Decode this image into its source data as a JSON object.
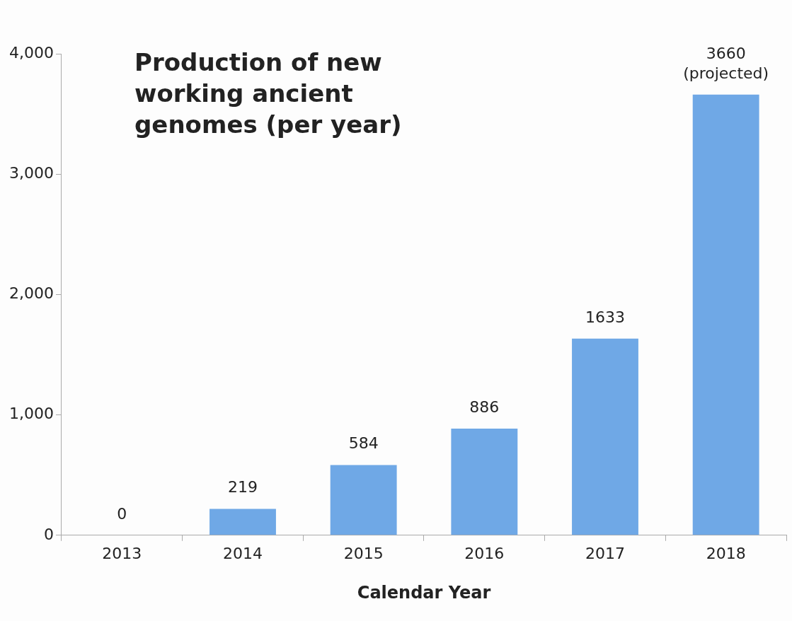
{
  "chart_data": {
    "type": "bar",
    "title": "Production of new working ancient genomes (per year)",
    "xlabel": "Calendar Year",
    "categories": [
      "2013",
      "2014",
      "2015",
      "2016",
      "2017",
      "2018"
    ],
    "values": [
      0,
      219,
      584,
      886,
      1633,
      3660
    ],
    "value_labels": [
      "0",
      "219",
      "584",
      "886",
      "1633",
      "3660\n(projected)"
    ],
    "color": "#6fa8e6",
    "ylim": [
      0,
      4000
    ],
    "yticks": [
      {
        "value": 0,
        "label": "0"
      },
      {
        "value": 1000,
        "label": "1,000"
      },
      {
        "value": 2000,
        "label": "2,000"
      },
      {
        "value": 3000,
        "label": "3,000"
      },
      {
        "value": 4000,
        "label": "4,000"
      }
    ],
    "grid": false,
    "legend": false
  }
}
